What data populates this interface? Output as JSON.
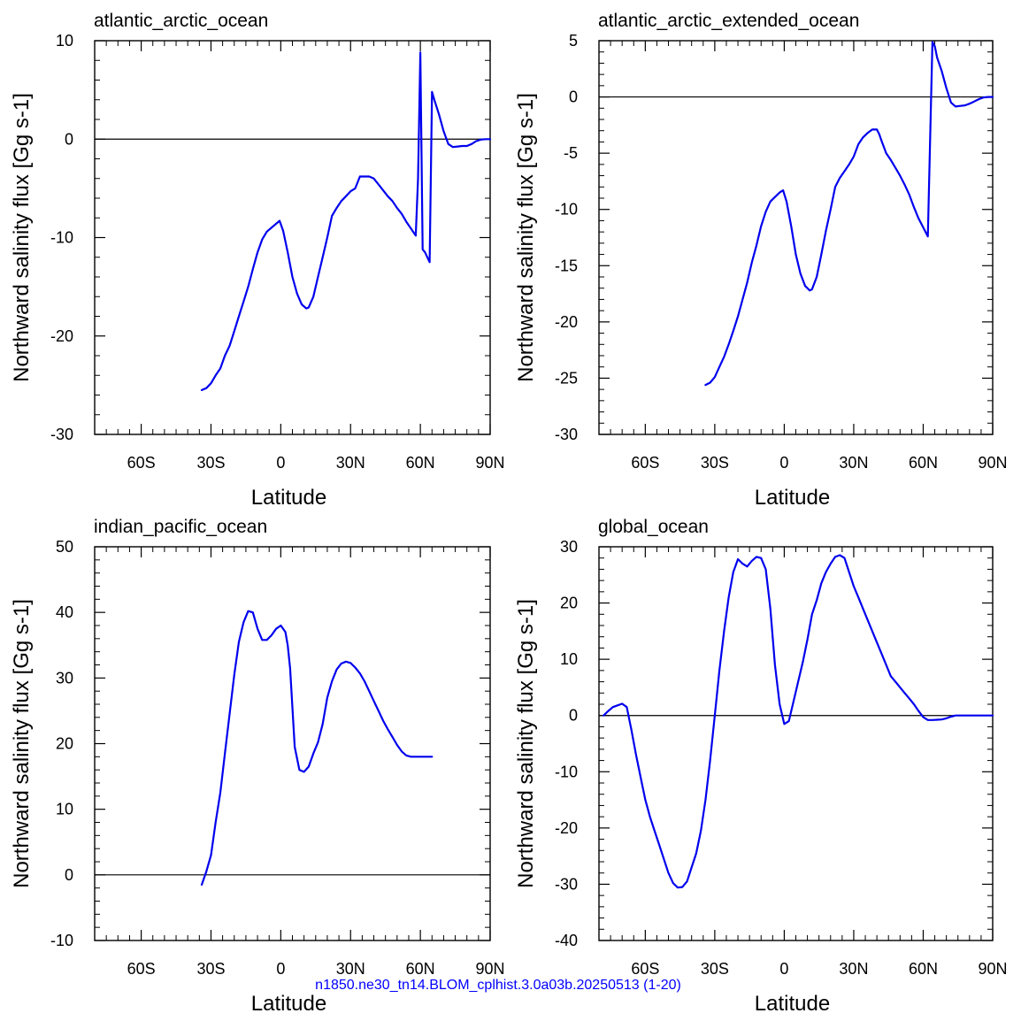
{
  "footer": "n1850.ne30_tn14.BLOM_cplhist.3.0a03b.20250513 (1-20)",
  "colors": {
    "line": "#0000ee",
    "axis": "#000000",
    "zero_line": "#000000",
    "footer": "#0000ff"
  },
  "chart_data": [
    {
      "type": "line",
      "title": "atlantic_arctic_ocean",
      "xlabel": "Latitude",
      "ylabel": "Northward salinity flux [Gg s-1]",
      "xlim": [
        -80,
        90
      ],
      "ylim": [
        -30,
        10
      ],
      "xticks": [
        -60,
        -30,
        0,
        30,
        60,
        90
      ],
      "xtick_labels": [
        "60S",
        "30S",
        "0",
        "30N",
        "60N",
        "90N"
      ],
      "yticks": [
        -30,
        -20,
        -10,
        0,
        10
      ],
      "ytick_labels": [
        "-30",
        "-20",
        "-10",
        "0",
        "10"
      ],
      "grid": false,
      "zero_line": true,
      "series": [
        {
          "x": [
            -34,
            -32,
            -30,
            -28,
            -26,
            -24,
            -22,
            -20,
            -18,
            -16,
            -14,
            -12,
            -10,
            -8,
            -6,
            -4,
            -2,
            -0.5,
            1,
            3,
            5,
            7,
            9,
            11,
            12,
            14,
            16,
            18,
            20,
            22,
            24,
            26,
            28,
            30,
            32,
            34,
            36,
            38,
            40,
            42,
            44,
            46,
            48,
            50,
            52,
            54,
            56,
            58,
            59,
            60,
            61,
            62,
            63,
            64,
            65,
            66,
            68,
            70,
            72,
            74,
            76,
            78,
            80,
            82,
            84,
            86,
            88,
            90
          ],
          "y": [
            -25.5,
            -25.3,
            -24.8,
            -24,
            -23.3,
            -22,
            -21,
            -19.5,
            -18,
            -16.5,
            -15,
            -13.2,
            -11.5,
            -10.2,
            -9.4,
            -9,
            -8.6,
            -8.3,
            -9.3,
            -11.5,
            -14,
            -15.7,
            -16.8,
            -17.2,
            -17.1,
            -16,
            -14,
            -12,
            -10,
            -7.8,
            -7,
            -6.3,
            -5.8,
            -5.3,
            -5,
            -3.8,
            -3.8,
            -3.8,
            -4,
            -4.6,
            -5.2,
            -5.8,
            -6.3,
            -7,
            -7.6,
            -8.4,
            -9.1,
            -9.8,
            -4,
            8.8,
            -11.2,
            -11.5,
            -12,
            -12.5,
            4.8,
            4,
            2.5,
            0.8,
            -0.5,
            -0.8,
            -0.75,
            -0.7,
            -0.7,
            -0.5,
            -0.2,
            -0.05,
            0,
            0
          ]
        }
      ]
    },
    {
      "type": "line",
      "title": "atlantic_arctic_extended_ocean",
      "xlabel": "Latitude",
      "ylabel": "Northward salinity flux [Gg s-1]",
      "xlim": [
        -80,
        90
      ],
      "ylim": [
        -30,
        5
      ],
      "xticks": [
        -60,
        -30,
        0,
        30,
        60,
        90
      ],
      "xtick_labels": [
        "60S",
        "30S",
        "0",
        "30N",
        "60N",
        "90N"
      ],
      "yticks": [
        -30,
        -25,
        -20,
        -15,
        -10,
        -5,
        0,
        5
      ],
      "ytick_labels": [
        "-30",
        "-25",
        "-20",
        "-15",
        "-10",
        "-5",
        "0",
        "5"
      ],
      "grid": false,
      "zero_line": true,
      "series": [
        {
          "x": [
            -34,
            -32,
            -30,
            -28,
            -26,
            -24,
            -22,
            -20,
            -18,
            -16,
            -14,
            -12,
            -10,
            -8,
            -6,
            -4,
            -2,
            -0.5,
            1,
            3,
            5,
            7,
            9,
            11,
            12,
            14,
            16,
            18,
            20,
            22,
            24,
            26,
            28,
            30,
            32,
            34,
            36,
            38,
            40,
            41,
            42,
            44,
            46,
            48,
            50,
            52,
            54,
            56,
            58,
            60,
            62,
            64,
            65,
            66,
            68,
            70,
            72,
            74,
            76,
            78,
            80,
            82,
            84,
            86,
            88,
            90
          ],
          "y": [
            -25.6,
            -25.4,
            -24.9,
            -24,
            -23.1,
            -22,
            -20.8,
            -19.5,
            -18,
            -16.5,
            -14.7,
            -13.2,
            -11.5,
            -10.2,
            -9.3,
            -8.9,
            -8.5,
            -8.3,
            -9.3,
            -11.5,
            -14,
            -15.7,
            -16.8,
            -17.2,
            -17.1,
            -16,
            -14,
            -11.9,
            -10,
            -8,
            -7.2,
            -6.6,
            -6,
            -5.3,
            -4.2,
            -3.6,
            -3.2,
            -2.9,
            -2.9,
            -3.3,
            -3.9,
            -5,
            -5.6,
            -6.3,
            -7,
            -7.8,
            -8.7,
            -9.8,
            -10.8,
            -11.6,
            -12.4,
            4.9,
            4.5,
            3.5,
            2.3,
            0.8,
            -0.5,
            -0.85,
            -0.8,
            -0.75,
            -0.6,
            -0.4,
            -0.2,
            -0.05,
            0,
            0
          ]
        }
      ]
    },
    {
      "type": "line",
      "title": "indian_pacific_ocean",
      "xlabel": "Latitude",
      "ylabel": "Northward salinity flux [Gg s-1]",
      "xlim": [
        -80,
        90
      ],
      "ylim": [
        -10,
        50
      ],
      "xticks": [
        -60,
        -30,
        0,
        30,
        60,
        90
      ],
      "xtick_labels": [
        "60S",
        "30S",
        "0",
        "30N",
        "60N",
        "90N"
      ],
      "yticks": [
        -10,
        0,
        10,
        20,
        30,
        40,
        50
      ],
      "ytick_labels": [
        "-10",
        "0",
        "10",
        "20",
        "30",
        "40",
        "50"
      ],
      "grid": false,
      "zero_line": true,
      "series": [
        {
          "x": [
            -34,
            -32,
            -30,
            -28,
            -26,
            -24,
            -22,
            -20,
            -18,
            -16,
            -14,
            -12,
            -10,
            -8,
            -6,
            -4,
            -2,
            0,
            2,
            3,
            4,
            6,
            8,
            10,
            12,
            14,
            16,
            18,
            20,
            22,
            24,
            26,
            28,
            30,
            32,
            34,
            36,
            38,
            40,
            42,
            44,
            46,
            48,
            50,
            52,
            54,
            56,
            58,
            60,
            62,
            64,
            65
          ],
          "y": [
            -1.5,
            0.5,
            3,
            8,
            12.5,
            18.5,
            24.5,
            30.5,
            35.5,
            38.5,
            40.2,
            40,
            37.5,
            35.8,
            35.8,
            36.5,
            37.5,
            38,
            37,
            35,
            31.5,
            19.5,
            16,
            15.7,
            16.5,
            18.5,
            20.2,
            23,
            27,
            29.5,
            31.3,
            32.2,
            32.5,
            32.3,
            31.6,
            30.7,
            29.5,
            28,
            26.5,
            25,
            23.5,
            22.2,
            21,
            19.8,
            18.8,
            18.2,
            18,
            18,
            18,
            18,
            18,
            18
          ]
        }
      ]
    },
    {
      "type": "line",
      "title": "global_ocean",
      "xlabel": "Latitude",
      "ylabel": "Northward salinity flux [Gg s-1]",
      "xlim": [
        -80,
        90
      ],
      "ylim": [
        -40,
        30
      ],
      "xticks": [
        -60,
        -30,
        0,
        30,
        60,
        90
      ],
      "xtick_labels": [
        "60S",
        "30S",
        "0",
        "30N",
        "60N",
        "90N"
      ],
      "yticks": [
        -40,
        -30,
        -20,
        -10,
        0,
        10,
        20,
        30
      ],
      "ytick_labels": [
        "-40",
        "-30",
        "-20",
        "-10",
        "0",
        "10",
        "20",
        "30"
      ],
      "grid": false,
      "zero_line": true,
      "series": [
        {
          "x": [
            -78,
            -76,
            -74,
            -72,
            -70,
            -68,
            -66,
            -64,
            -62,
            -60,
            -58,
            -56,
            -54,
            -52,
            -50,
            -48,
            -46,
            -44,
            -42,
            -40,
            -38,
            -36,
            -34,
            -32,
            -30,
            -28,
            -26,
            -24,
            -22,
            -20,
            -18,
            -16,
            -14,
            -12,
            -10,
            -8,
            -6,
            -4,
            -2,
            0,
            2,
            4,
            6,
            8,
            10,
            12,
            14,
            16,
            18,
            20,
            22,
            24,
            26,
            28,
            30,
            32,
            34,
            36,
            38,
            40,
            42,
            44,
            46,
            48,
            50,
            52,
            54,
            56,
            58,
            60,
            62,
            64,
            66,
            68,
            70,
            72,
            74,
            76,
            78,
            80,
            82,
            84,
            86,
            88,
            90
          ],
          "y": [
            0,
            0.8,
            1.5,
            1.8,
            2.1,
            1.5,
            -2.5,
            -7,
            -11,
            -15,
            -18,
            -20.5,
            -23,
            -25.5,
            -28,
            -29.8,
            -30.6,
            -30.5,
            -29.5,
            -27,
            -24.5,
            -20.5,
            -15,
            -8,
            0,
            8,
            15,
            21,
            25.5,
            27.8,
            27,
            26.5,
            27.5,
            28.2,
            28,
            26,
            19,
            9,
            2,
            -1.5,
            -1,
            2.5,
            6,
            9.5,
            13.5,
            18,
            20.5,
            23.5,
            25.5,
            27,
            28.2,
            28.5,
            28,
            25.5,
            23,
            21,
            19,
            17,
            15,
            13,
            11,
            9,
            7,
            6,
            5,
            4,
            3,
            2,
            0.8,
            -0.3,
            -0.8,
            -0.8,
            -0.75,
            -0.7,
            -0.5,
            -0.2,
            0,
            0,
            0,
            0,
            0,
            0,
            0,
            0,
            0
          ]
        }
      ]
    }
  ]
}
